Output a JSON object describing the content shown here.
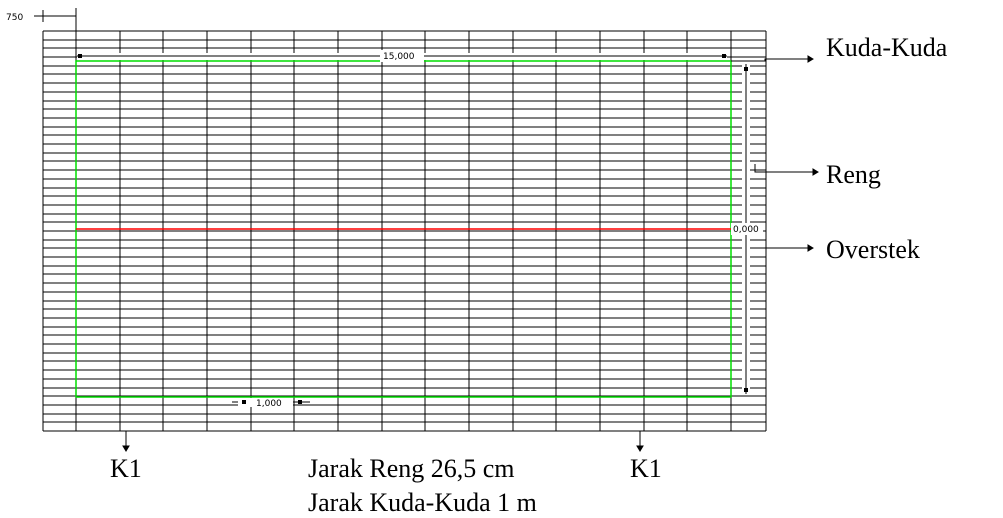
{
  "dimensions": {
    "overhang": "750",
    "total_length": "15,000",
    "truss_spacing": "1,000",
    "elevation": "0,000"
  },
  "callouts": {
    "truss": "Kuda-Kuda",
    "batten": "Reng",
    "overhang": "Overstek"
  },
  "truss_labels": {
    "left": "K1",
    "right": "K1"
  },
  "notes": {
    "batten_spacing": "Jarak Reng 26,5 cm",
    "truss_spacing": "Jarak Kuda-Kuda 1 m"
  },
  "colors": {
    "grid": "#000000",
    "building_outline": "#00dd00",
    "ridge_line": "#ff0000"
  }
}
